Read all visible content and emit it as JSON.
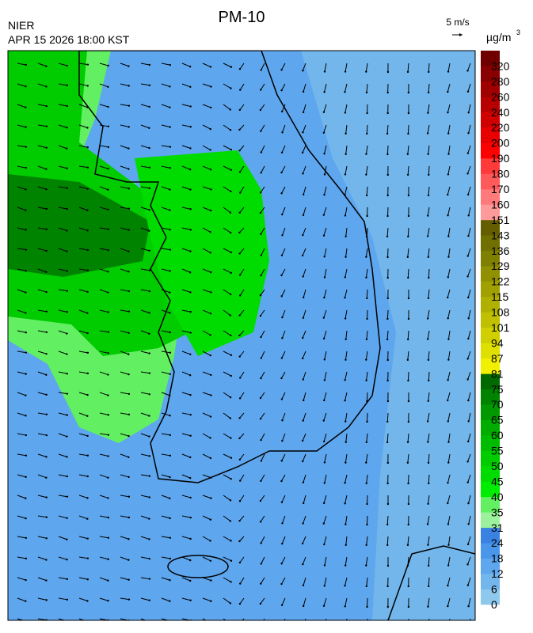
{
  "header": {
    "title": "PM-10",
    "agency": "NIER",
    "datetime": "APR 15 2026 18:00 KST",
    "wind_reference": "5 m/s",
    "unit": "µg/m",
    "unit_superscript": "3"
  },
  "legend": {
    "levels": [
      0,
      6,
      12,
      18,
      24,
      31,
      35,
      40,
      45,
      50,
      55,
      60,
      65,
      70,
      75,
      81,
      87,
      94,
      101,
      108,
      115,
      122,
      129,
      136,
      143,
      151,
      160,
      170,
      180,
      190,
      200,
      220,
      240,
      260,
      280,
      320
    ],
    "colors": [
      "#8ec8ec",
      "#72b6ec",
      "#5ea6ee",
      "#4a96ea",
      "#3a82e2",
      "#9cf29c",
      "#62f062",
      "#00ec00",
      "#00dc00",
      "#00cc00",
      "#00bc00",
      "#00ac00",
      "#009a00",
      "#008400",
      "#006a00",
      "#f0f000",
      "#e0e000",
      "#d0d000",
      "#c0c000",
      "#b0b000",
      "#a0a000",
      "#909000",
      "#808000",
      "#707000",
      "#645e00",
      "#ff9a9a",
      "#ff7a7a",
      "#ff5a5a",
      "#ff3a3a",
      "#ff0000",
      "#e80000",
      "#d00000",
      "#b80000",
      "#a00000",
      "#880000",
      "#700000"
    ]
  }
}
